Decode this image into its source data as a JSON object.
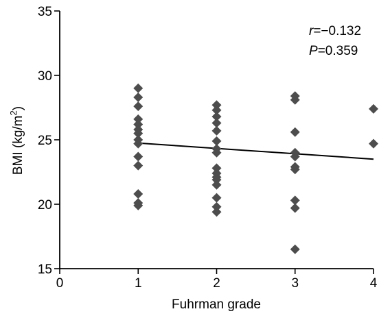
{
  "chart_data": {
    "type": "scatter",
    "title": "",
    "xlabel": "Fuhrman grade",
    "ylabel_main": "BMI (kg/m",
    "ylabel_sup": "2",
    "ylabel_close": ")",
    "xlim": [
      0,
      4
    ],
    "ylim": [
      15,
      35
    ],
    "xticks": [
      0,
      1,
      2,
      3,
      4
    ],
    "yticks": [
      15,
      20,
      25,
      30,
      35
    ],
    "grid": false,
    "marker_color": "#4d4d4d",
    "points": [
      {
        "x": 1,
        "y": 29.0
      },
      {
        "x": 1,
        "y": 28.3
      },
      {
        "x": 1,
        "y": 27.6
      },
      {
        "x": 1,
        "y": 26.6
      },
      {
        "x": 1,
        "y": 26.2
      },
      {
        "x": 1,
        "y": 25.8
      },
      {
        "x": 1,
        "y": 25.5
      },
      {
        "x": 1,
        "y": 25.0
      },
      {
        "x": 1,
        "y": 24.7
      },
      {
        "x": 1,
        "y": 23.7
      },
      {
        "x": 1,
        "y": 23.0
      },
      {
        "x": 1,
        "y": 20.8
      },
      {
        "x": 1,
        "y": 20.1
      },
      {
        "x": 1,
        "y": 19.9
      },
      {
        "x": 2,
        "y": 27.7
      },
      {
        "x": 2,
        "y": 27.3
      },
      {
        "x": 2,
        "y": 26.8
      },
      {
        "x": 2,
        "y": 26.3
      },
      {
        "x": 2,
        "y": 25.7
      },
      {
        "x": 2,
        "y": 24.9
      },
      {
        "x": 2,
        "y": 24.3
      },
      {
        "x": 2,
        "y": 24.0
      },
      {
        "x": 2,
        "y": 22.8
      },
      {
        "x": 2,
        "y": 22.4
      },
      {
        "x": 2,
        "y": 22.1
      },
      {
        "x": 2,
        "y": 21.9
      },
      {
        "x": 2,
        "y": 21.5
      },
      {
        "x": 2,
        "y": 20.5
      },
      {
        "x": 2,
        "y": 19.8
      },
      {
        "x": 2,
        "y": 19.4
      },
      {
        "x": 3,
        "y": 28.4
      },
      {
        "x": 3,
        "y": 28.1
      },
      {
        "x": 3,
        "y": 25.6
      },
      {
        "x": 3,
        "y": 24.0
      },
      {
        "x": 3,
        "y": 23.7
      },
      {
        "x": 3,
        "y": 22.9
      },
      {
        "x": 3,
        "y": 22.7
      },
      {
        "x": 3,
        "y": 20.3
      },
      {
        "x": 3,
        "y": 19.7
      },
      {
        "x": 3,
        "y": 16.5
      },
      {
        "x": 4,
        "y": 27.4
      },
      {
        "x": 4,
        "y": 24.7
      }
    ],
    "trendline": {
      "x": [
        1,
        4
      ],
      "y": [
        24.75,
        23.5
      ]
    },
    "annotation": {
      "r_symbol": "r",
      "r_value": "=−0.132",
      "p_symbol": "P",
      "p_value": "=0.359"
    }
  }
}
